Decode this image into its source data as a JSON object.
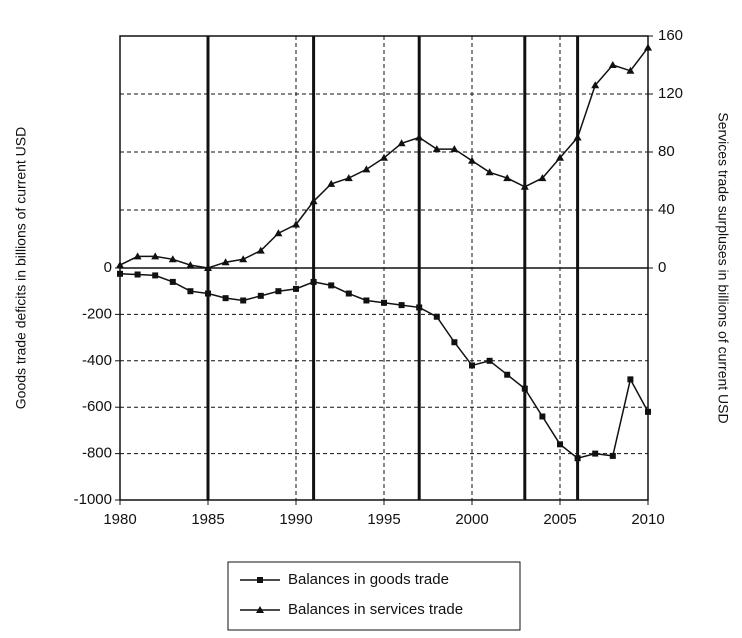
{
  "chart_data": {
    "type": "line",
    "x": [
      1980,
      1981,
      1982,
      1983,
      1984,
      1985,
      1986,
      1987,
      1988,
      1989,
      1990,
      1991,
      1992,
      1993,
      1994,
      1995,
      1996,
      1997,
      1998,
      1999,
      2000,
      2001,
      2002,
      2003,
      2004,
      2005,
      2006,
      2007,
      2008,
      2009,
      2010
    ],
    "series": [
      {
        "name": "Balances in goods trade",
        "color": "#111111",
        "marker": "square",
        "values": [
          -25,
          -28,
          -32,
          -60,
          -100,
          -110,
          -130,
          -140,
          -120,
          -100,
          -90,
          -60,
          -75,
          -110,
          -140,
          -150,
          -160,
          -170,
          -210,
          -320,
          -420,
          -400,
          -460,
          -520,
          -640,
          -760,
          -820,
          -800,
          -810,
          -480,
          -620
        ]
      },
      {
        "name": "Balances in services trade",
        "color": "#111111",
        "marker": "triangle",
        "axis": "y2",
        "values": [
          2,
          8,
          8,
          6,
          2,
          0,
          4,
          6,
          12,
          24,
          30,
          46,
          58,
          62,
          68,
          76,
          86,
          90,
          82,
          82,
          74,
          66,
          62,
          56,
          62,
          76,
          90,
          126,
          140,
          136,
          152
        ]
      }
    ],
    "xlim": [
      1980,
      2010
    ],
    "xticks": [
      1980,
      1985,
      1990,
      1995,
      2000,
      2005,
      2010
    ],
    "ylim": [
      -1000,
      1000
    ],
    "yticks": [
      0,
      -200,
      -400,
      -600,
      -800,
      -1000
    ],
    "y2lim": [
      -160,
      160
    ],
    "y2ticks": [
      0,
      40,
      80,
      120,
      160
    ],
    "ylabel": "Goods trade deficits in billions of current USD",
    "y2label": "Services trade surpluses in billions of current USD",
    "vlines": [
      1985,
      1991,
      1997,
      2003,
      2006
    ],
    "grid": true
  }
}
